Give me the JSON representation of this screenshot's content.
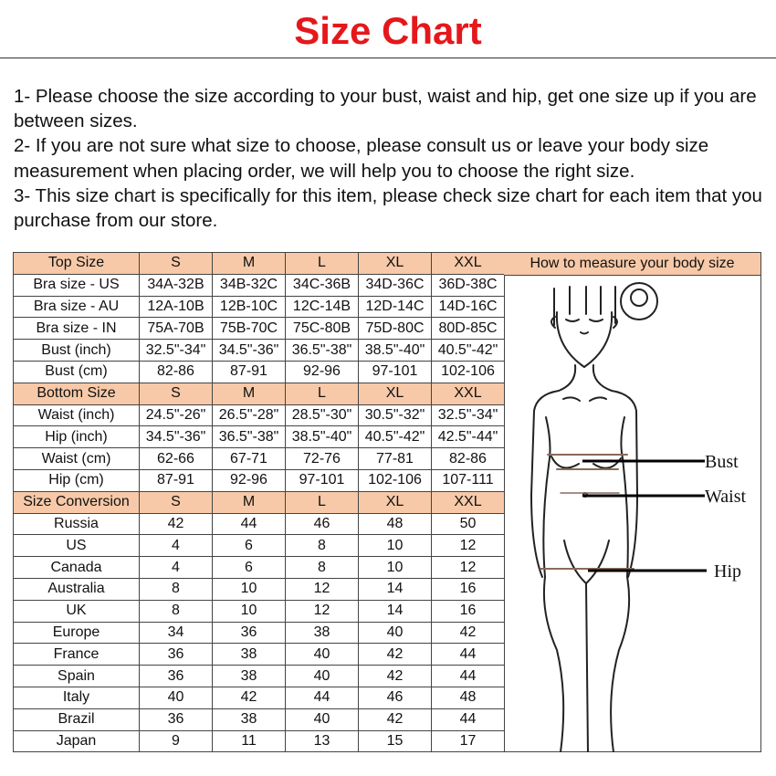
{
  "title": "Size Chart",
  "notes": [
    "1- Please choose the size according to your bust, waist and hip, get one size up if you are between sizes.",
    "2- If you are not sure what size to choose, please consult us or leave your body size measurement when placing order, we will help you to choose the right size.",
    "3- This size chart is specifically for this item, please check size chart for each item that you purchase from our store."
  ],
  "colors": {
    "title": "#e5171b",
    "header_bg": "#f7c9a8"
  },
  "table": {
    "rows": [
      {
        "header": true,
        "cells": [
          "Top Size",
          "S",
          "M",
          "L",
          "XL",
          "XXL"
        ]
      },
      {
        "cells": [
          "Bra size - US",
          "34A-32B",
          "34B-32C",
          "34C-36B",
          "34D-36C",
          "36D-38C"
        ]
      },
      {
        "cells": [
          "Bra size - AU",
          "12A-10B",
          "12B-10C",
          "12C-14B",
          "12D-14C",
          "14D-16C"
        ]
      },
      {
        "cells": [
          "Bra size - IN",
          "75A-70B",
          "75B-70C",
          "75C-80B",
          "75D-80C",
          "80D-85C"
        ]
      },
      {
        "cells": [
          "Bust (inch)",
          "32.5\"-34\"",
          "34.5\"-36\"",
          "36.5\"-38\"",
          "38.5\"-40\"",
          "40.5\"-42\""
        ]
      },
      {
        "cells": [
          "Bust (cm)",
          "82-86",
          "87-91",
          "92-96",
          "97-101",
          "102-106"
        ]
      },
      {
        "header": true,
        "cells": [
          "Bottom Size",
          "S",
          "M",
          "L",
          "XL",
          "XXL"
        ]
      },
      {
        "cells": [
          "Waist (inch)",
          "24.5\"-26\"",
          "26.5\"-28\"",
          "28.5\"-30\"",
          "30.5\"-32\"",
          "32.5\"-34\""
        ]
      },
      {
        "cells": [
          "Hip (inch)",
          "34.5\"-36\"",
          "36.5\"-38\"",
          "38.5\"-40\"",
          "40.5\"-42\"",
          "42.5\"-44\""
        ]
      },
      {
        "cells": [
          "Waist (cm)",
          "62-66",
          "67-71",
          "72-76",
          "77-81",
          "82-86"
        ]
      },
      {
        "cells": [
          "Hip (cm)",
          "87-91",
          "92-96",
          "97-101",
          "102-106",
          "107-111"
        ]
      },
      {
        "header": true,
        "cells": [
          "Size Conversion",
          "S",
          "M",
          "L",
          "XL",
          "XXL"
        ]
      },
      {
        "cells": [
          "Russia",
          "42",
          "44",
          "46",
          "48",
          "50"
        ]
      },
      {
        "cells": [
          "US",
          "4",
          "6",
          "8",
          "10",
          "12"
        ]
      },
      {
        "cells": [
          "Canada",
          "4",
          "6",
          "8",
          "10",
          "12"
        ]
      },
      {
        "cells": [
          "Australia",
          "8",
          "10",
          "12",
          "14",
          "16"
        ]
      },
      {
        "cells": [
          "UK",
          "8",
          "10",
          "12",
          "14",
          "16"
        ]
      },
      {
        "cells": [
          "Europe",
          "34",
          "36",
          "38",
          "40",
          "42"
        ]
      },
      {
        "cells": [
          "France",
          "36",
          "38",
          "40",
          "42",
          "44"
        ]
      },
      {
        "cells": [
          "Spain",
          "36",
          "38",
          "40",
          "42",
          "44"
        ]
      },
      {
        "cells": [
          "Italy",
          "40",
          "42",
          "44",
          "46",
          "48"
        ]
      },
      {
        "cells": [
          "Brazil",
          "36",
          "38",
          "40",
          "42",
          "44"
        ]
      },
      {
        "cells": [
          "Japan",
          "9",
          "11",
          "13",
          "15",
          "17"
        ]
      }
    ]
  },
  "measure": {
    "heading": "How to measure your body size",
    "labels": {
      "bust": "Bust",
      "waist": "Waist",
      "hip": "Hip"
    },
    "figure_icon": "body-outline-figure"
  }
}
